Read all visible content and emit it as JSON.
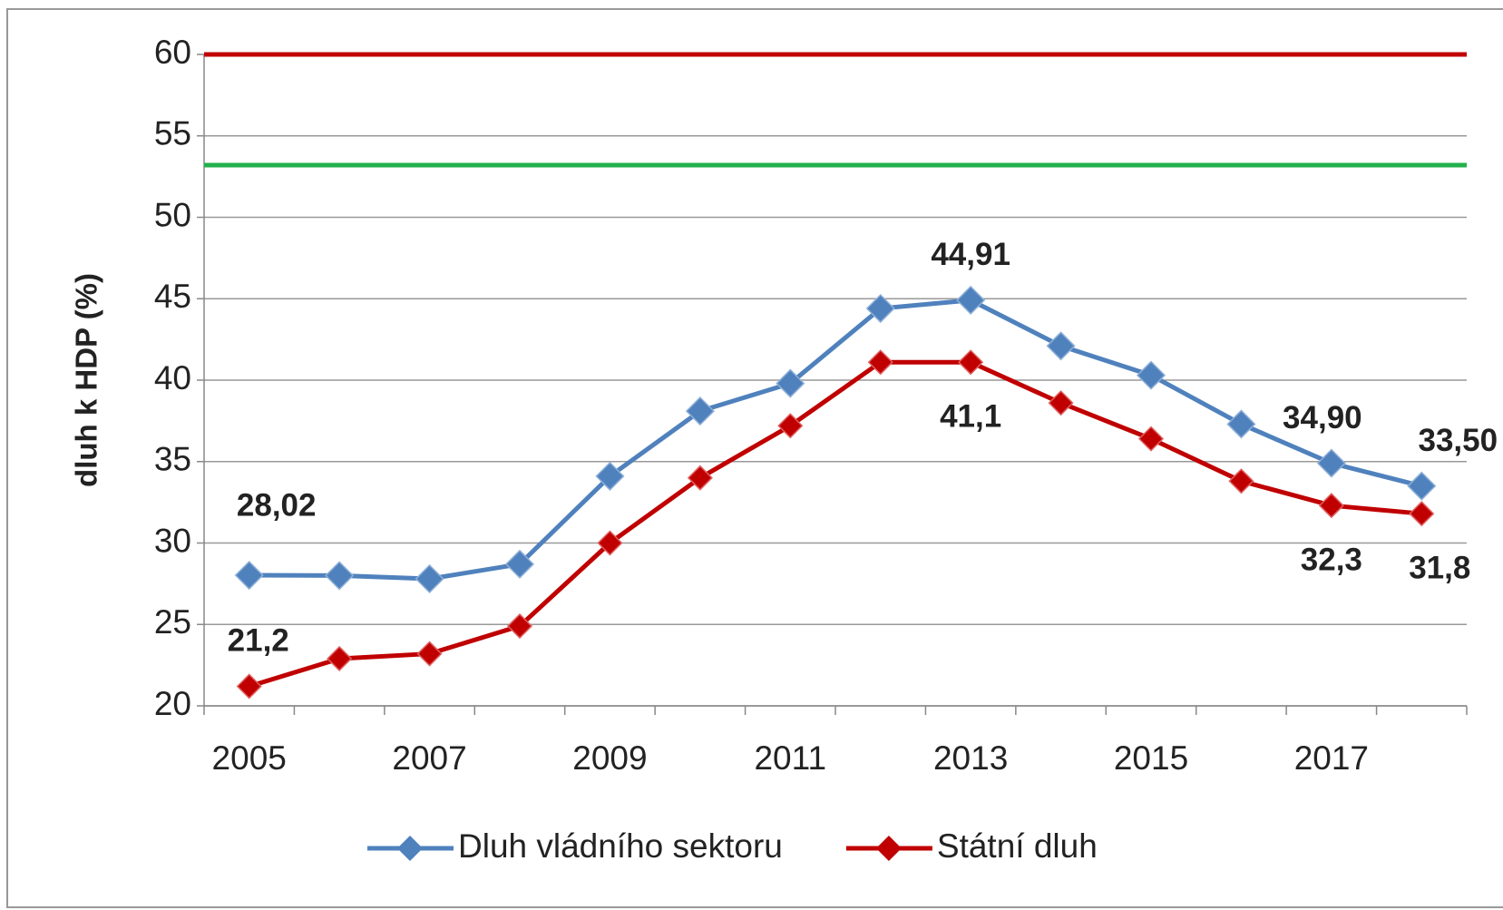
{
  "chart_data": {
    "type": "line",
    "y_label": "dluh k HDP (%)",
    "categories": [
      "2005",
      null,
      "2007",
      null,
      "2009",
      null,
      "2011",
      null,
      "2013",
      null,
      "2015",
      null,
      "2017",
      null
    ],
    "series": [
      {
        "name": "Dluh vládního sektoru",
        "color": "#4f81bd",
        "values": [
          28.02,
          28.0,
          27.8,
          28.7,
          34.1,
          38.1,
          39.8,
          44.4,
          44.91,
          42.1,
          40.3,
          37.3,
          34.9,
          33.5
        ],
        "value_labels": [
          "28,02",
          null,
          null,
          null,
          null,
          null,
          null,
          null,
          "44,91",
          null,
          null,
          null,
          "34,90",
          "33,50"
        ]
      },
      {
        "name": "Státní dluh",
        "color": "#c00000",
        "values": [
          21.2,
          22.9,
          23.2,
          24.9,
          30.0,
          34.0,
          37.2,
          41.1,
          41.1,
          38.6,
          36.4,
          33.8,
          32.3,
          31.8
        ],
        "value_labels": [
          "21,2",
          null,
          null,
          null,
          null,
          null,
          null,
          null,
          "41,1",
          null,
          null,
          null,
          "32,3",
          "31,8"
        ]
      }
    ],
    "reference_lines": [
      {
        "value": 60,
        "color": "#c00000"
      },
      {
        "value": 53.2,
        "color": "#22b04b"
      }
    ],
    "ylim": [
      20,
      60
    ],
    "yticks": [
      20,
      25,
      30,
      35,
      40,
      45,
      50,
      55,
      60
    ],
    "grid": true,
    "legend": "bottom"
  }
}
